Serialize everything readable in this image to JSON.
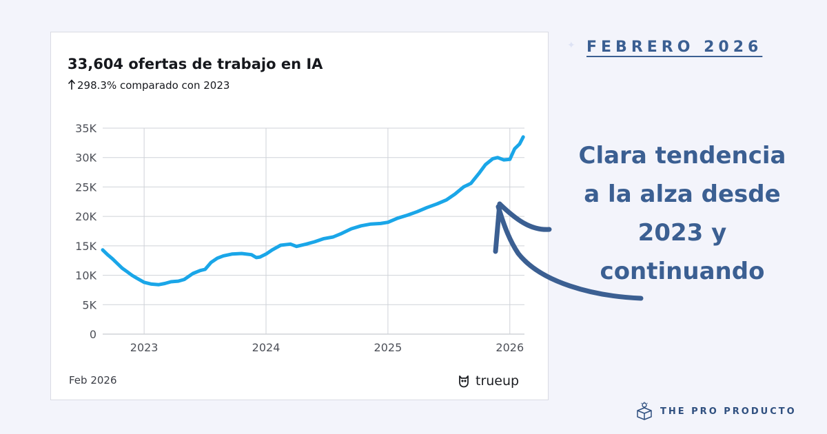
{
  "header": {
    "date_label": "FEBRERO 2026"
  },
  "annotation": {
    "text": "Clara tendencia\na la alza desde\n2023 y\ncontinuando"
  },
  "footer": {
    "brand": "THE PRO PRODUCTO"
  },
  "card": {
    "title": "33,604 ofertas de trabajo en IA",
    "subtitle": "298.3% comparado con 2023",
    "date": "Feb 2026",
    "brand": "trueup"
  },
  "colors": {
    "line": "#1aa6e8",
    "accent": "#3b5f92",
    "grid": "#cfd2d8"
  },
  "chart_data": {
    "type": "line",
    "title": "33,604 ofertas de trabajo en IA",
    "subtitle": "298.3% comparado con 2023",
    "xlabel": "",
    "ylabel": "",
    "ylim": [
      0,
      35000
    ],
    "xlim": [
      2022.66,
      2026.12
    ],
    "grid": true,
    "y_ticks": [
      0,
      5000,
      10000,
      15000,
      20000,
      25000,
      30000,
      35000
    ],
    "y_tick_labels": [
      "0",
      "5K",
      "10K",
      "15K",
      "20K",
      "25K",
      "30K",
      "35K"
    ],
    "x_ticks": [
      2023,
      2024,
      2025,
      2026
    ],
    "x_tick_labels": [
      "2023",
      "2024",
      "2025",
      "2026"
    ],
    "series": [
      {
        "x": [
          2022.66,
          2022.7,
          2022.74,
          2022.78,
          2022.82,
          2022.86,
          2022.9,
          2022.94,
          2023.0,
          2023.06,
          2023.12,
          2023.17,
          2023.22,
          2023.28,
          2023.33,
          2023.4,
          2023.46,
          2023.5,
          2023.55,
          2023.6,
          2023.65,
          2023.72,
          2023.8,
          2023.88,
          2023.92,
          2023.95,
          2024.0,
          2024.05,
          2024.12,
          2024.2,
          2024.25,
          2024.33,
          2024.4,
          2024.47,
          2024.55,
          2024.62,
          2024.7,
          2024.78,
          2024.86,
          2024.94,
          2025.0,
          2025.08,
          2025.16,
          2025.24,
          2025.32,
          2025.4,
          2025.48,
          2025.55,
          2025.62,
          2025.68,
          2025.75,
          2025.8,
          2025.86,
          2025.9,
          2025.95,
          2026.0,
          2026.04,
          2026.08,
          2026.11
        ],
        "y": [
          14300,
          13500,
          12800,
          12000,
          11200,
          10600,
          10000,
          9500,
          8800,
          8500,
          8400,
          8600,
          8900,
          9000,
          9300,
          10300,
          10800,
          11000,
          12200,
          12900,
          13300,
          13600,
          13700,
          13500,
          13000,
          13100,
          13600,
          14300,
          15100,
          15300,
          14900,
          15300,
          15700,
          16200,
          16500,
          17100,
          17900,
          18400,
          18700,
          18800,
          19000,
          19700,
          20200,
          20800,
          21500,
          22100,
          22800,
          23800,
          25000,
          25600,
          27400,
          28800,
          29800,
          30000,
          29600,
          29700,
          31500,
          32300,
          33500
        ]
      }
    ]
  }
}
